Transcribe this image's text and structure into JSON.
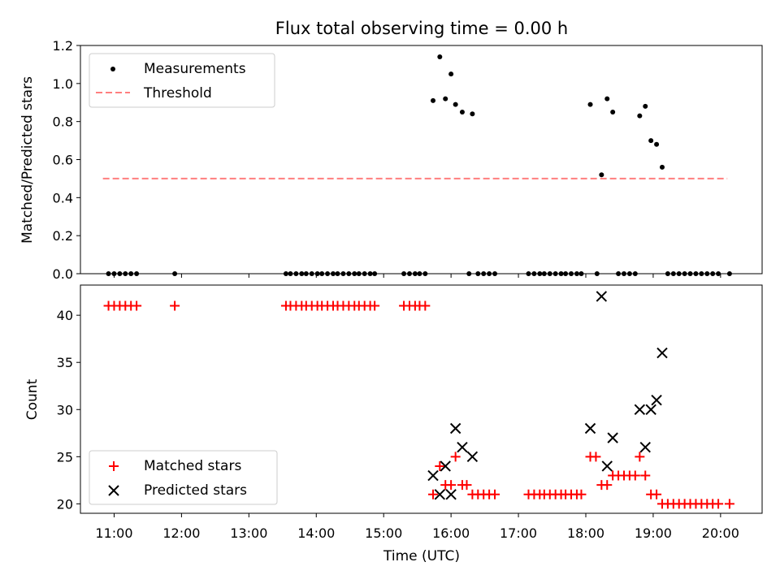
{
  "chart_data": {
    "title": "Flux total observing time = 0.00 h",
    "xlabel": "Time (UTC)",
    "x_ticks": [
      "11:00",
      "12:00",
      "13:00",
      "14:00",
      "15:00",
      "16:00",
      "17:00",
      "18:00",
      "19:00",
      "20:00"
    ],
    "xlim": [
      "10:30",
      "20:37"
    ],
    "colors": {
      "measurements": "#000000",
      "threshold": "#ff7f7f",
      "matched": "#ff0000",
      "predicted": "#000000"
    },
    "panels": [
      {
        "type": "scatter",
        "ylabel": "Matched/Predicted stars",
        "ylim": [
          0,
          1.2
        ],
        "y_ticks": [
          "0.0",
          "0.2",
          "0.4",
          "0.6",
          "0.8",
          "1.0",
          "1.2"
        ],
        "legend_position": "top-left",
        "series": [
          {
            "name": "Measurements",
            "marker": "dot",
            "points": [
              [
                "10:55",
                0.0
              ],
              [
                "11:00",
                0.0
              ],
              [
                "11:05",
                0.0
              ],
              [
                "11:10",
                0.0
              ],
              [
                "11:15",
                0.0
              ],
              [
                "11:20",
                0.0
              ],
              [
                "11:54",
                0.0
              ],
              [
                "13:33",
                0.0
              ],
              [
                "13:37",
                0.0
              ],
              [
                "13:42",
                0.0
              ],
              [
                "13:47",
                0.0
              ],
              [
                "13:51",
                0.0
              ],
              [
                "13:56",
                0.0
              ],
              [
                "14:01",
                0.0
              ],
              [
                "14:05",
                0.0
              ],
              [
                "14:10",
                0.0
              ],
              [
                "14:15",
                0.0
              ],
              [
                "14:19",
                0.0
              ],
              [
                "14:24",
                0.0
              ],
              [
                "14:29",
                0.0
              ],
              [
                "14:34",
                0.0
              ],
              [
                "14:38",
                0.0
              ],
              [
                "14:43",
                0.0
              ],
              [
                "14:48",
                0.0
              ],
              [
                "14:52",
                0.0
              ],
              [
                "15:18",
                0.0
              ],
              [
                "15:23",
                0.0
              ],
              [
                "15:28",
                0.0
              ],
              [
                "15:32",
                0.0
              ],
              [
                "15:37",
                0.0
              ],
              [
                "15:44",
                0.91
              ],
              [
                "15:50",
                1.14
              ],
              [
                "15:55",
                0.92
              ],
              [
                "16:00",
                1.05
              ],
              [
                "16:04",
                0.89
              ],
              [
                "16:10",
                0.85
              ],
              [
                "16:16",
                0.0
              ],
              [
                "16:19",
                0.84
              ],
              [
                "16:24",
                0.0
              ],
              [
                "16:29",
                0.0
              ],
              [
                "16:34",
                0.0
              ],
              [
                "16:39",
                0.0
              ],
              [
                "17:09",
                0.0
              ],
              [
                "17:14",
                0.0
              ],
              [
                "17:19",
                0.0
              ],
              [
                "17:23",
                0.0
              ],
              [
                "17:28",
                0.0
              ],
              [
                "17:33",
                0.0
              ],
              [
                "17:38",
                0.0
              ],
              [
                "17:42",
                0.0
              ],
              [
                "17:47",
                0.0
              ],
              [
                "17:52",
                0.0
              ],
              [
                "17:56",
                0.0
              ],
              [
                "18:04",
                0.89
              ],
              [
                "18:10",
                0.0
              ],
              [
                "18:14",
                0.52
              ],
              [
                "18:19",
                0.92
              ],
              [
                "18:24",
                0.85
              ],
              [
                "18:29",
                0.0
              ],
              [
                "18:34",
                0.0
              ],
              [
                "18:39",
                0.0
              ],
              [
                "18:44",
                0.0
              ],
              [
                "18:48",
                0.83
              ],
              [
                "18:53",
                0.88
              ],
              [
                "18:58",
                0.7
              ],
              [
                "19:03",
                0.68
              ],
              [
                "19:08",
                0.56
              ],
              [
                "19:13",
                0.0
              ],
              [
                "19:18",
                0.0
              ],
              [
                "19:23",
                0.0
              ],
              [
                "19:28",
                0.0
              ],
              [
                "19:33",
                0.0
              ],
              [
                "19:38",
                0.0
              ],
              [
                "19:43",
                0.0
              ],
              [
                "19:48",
                0.0
              ],
              [
                "19:53",
                0.0
              ],
              [
                "19:58",
                0.0
              ],
              [
                "20:08",
                0.0
              ]
            ]
          },
          {
            "name": "Threshold",
            "style": "dashed",
            "points": [
              [
                "10:50",
                0.5
              ],
              [
                "20:06",
                0.5
              ]
            ]
          }
        ]
      },
      {
        "type": "scatter",
        "ylabel": "Count",
        "ylim": [
          19,
          43.2
        ],
        "y_ticks": [
          "20",
          "25",
          "30",
          "35",
          "40"
        ],
        "legend_position": "bottom-left",
        "series": [
          {
            "name": "Matched stars",
            "marker": "plus",
            "points": [
              [
                "10:55",
                41
              ],
              [
                "11:00",
                41
              ],
              [
                "11:05",
                41
              ],
              [
                "11:10",
                41
              ],
              [
                "11:15",
                41
              ],
              [
                "11:20",
                41
              ],
              [
                "11:54",
                41
              ],
              [
                "13:33",
                41
              ],
              [
                "13:37",
                41
              ],
              [
                "13:42",
                41
              ],
              [
                "13:47",
                41
              ],
              [
                "13:51",
                41
              ],
              [
                "13:56",
                41
              ],
              [
                "14:01",
                41
              ],
              [
                "14:05",
                41
              ],
              [
                "14:10",
                41
              ],
              [
                "14:15",
                41
              ],
              [
                "14:19",
                41
              ],
              [
                "14:24",
                41
              ],
              [
                "14:29",
                41
              ],
              [
                "14:34",
                41
              ],
              [
                "14:38",
                41
              ],
              [
                "14:43",
                41
              ],
              [
                "14:48",
                41
              ],
              [
                "14:52",
                41
              ],
              [
                "15:18",
                41
              ],
              [
                "15:23",
                41
              ],
              [
                "15:28",
                41
              ],
              [
                "15:32",
                41
              ],
              [
                "15:37",
                41
              ],
              [
                "15:44",
                21
              ],
              [
                "15:50",
                24
              ],
              [
                "15:55",
                22
              ],
              [
                "16:00",
                22
              ],
              [
                "16:04",
                25
              ],
              [
                "16:10",
                22
              ],
              [
                "16:14",
                22
              ],
              [
                "16:19",
                21
              ],
              [
                "16:24",
                21
              ],
              [
                "16:29",
                21
              ],
              [
                "16:34",
                21
              ],
              [
                "16:39",
                21
              ],
              [
                "17:09",
                21
              ],
              [
                "17:14",
                21
              ],
              [
                "17:19",
                21
              ],
              [
                "17:23",
                21
              ],
              [
                "17:28",
                21
              ],
              [
                "17:33",
                21
              ],
              [
                "17:38",
                21
              ],
              [
                "17:42",
                21
              ],
              [
                "17:47",
                21
              ],
              [
                "17:52",
                21
              ],
              [
                "17:56",
                21
              ],
              [
                "18:04",
                25
              ],
              [
                "18:09",
                25
              ],
              [
                "18:14",
                22
              ],
              [
                "18:19",
                22
              ],
              [
                "18:24",
                23
              ],
              [
                "18:29",
                23
              ],
              [
                "18:34",
                23
              ],
              [
                "18:39",
                23
              ],
              [
                "18:44",
                23
              ],
              [
                "18:48",
                25
              ],
              [
                "18:53",
                23
              ],
              [
                "18:58",
                21
              ],
              [
                "19:03",
                21
              ],
              [
                "19:08",
                20
              ],
              [
                "19:13",
                20
              ],
              [
                "19:18",
                20
              ],
              [
                "19:23",
                20
              ],
              [
                "19:28",
                20
              ],
              [
                "19:33",
                20
              ],
              [
                "19:38",
                20
              ],
              [
                "19:43",
                20
              ],
              [
                "19:48",
                20
              ],
              [
                "19:53",
                20
              ],
              [
                "19:58",
                20
              ],
              [
                "20:08",
                20
              ]
            ]
          },
          {
            "name": "Predicted stars",
            "marker": "x",
            "points": [
              [
                "15:44",
                23
              ],
              [
                "15:50",
                21
              ],
              [
                "15:55",
                24
              ],
              [
                "16:00",
                21
              ],
              [
                "16:04",
                28
              ],
              [
                "16:10",
                26
              ],
              [
                "16:19",
                25
              ],
              [
                "18:04",
                28
              ],
              [
                "18:14",
                42
              ],
              [
                "18:19",
                24
              ],
              [
                "18:24",
                27
              ],
              [
                "18:48",
                30
              ],
              [
                "18:53",
                26
              ],
              [
                "18:58",
                30
              ],
              [
                "19:03",
                31
              ],
              [
                "19:08",
                36
              ]
            ]
          }
        ]
      }
    ]
  }
}
